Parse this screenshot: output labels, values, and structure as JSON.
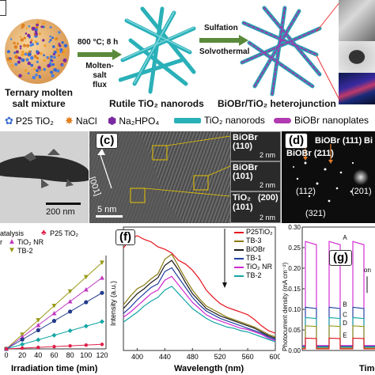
{
  "top": {
    "step1": {
      "temp": "800 °C; 8 h",
      "flux": "Molten-salt",
      "flux2": "flux"
    },
    "step2": {
      "a": "Sulfation",
      "b": "Solvothermal"
    },
    "ternary": [
      "Ternary molten",
      "salt  mixture"
    ],
    "rutile": "Rutile TiO₂ nanorods",
    "hetero": "BiOBr/TiO₂ heterojunction"
  },
  "legend": {
    "p25": "P25 TiO₂",
    "nacl": "NaCl",
    "na2hpo4": "Na₂HPO₄",
    "tio2": "TiO₂ nanorods",
    "biobr": "BiOBr nanoplates"
  },
  "panel_b": {
    "scale": "200 nm"
  },
  "panel_c": {
    "letter": "(c)",
    "scale": "5 nm",
    "dir": "[001]",
    "inset1": {
      "label1": "BiOBr",
      "label2": "(110)",
      "scale": "2 nm"
    },
    "inset2": {
      "label1": "BiOBr",
      "label2": "(101)",
      "scale": "2 nm"
    },
    "inset3": {
      "label1": "TiO₂",
      "label2": "(200)",
      "label3": "(101)",
      "scale": "2 nm"
    }
  },
  "panel_d": {
    "letter": "(d)",
    "spots": [
      "BiOBr (211)",
      "BiOBr (111)",
      "Bi",
      "(112)",
      "(201)",
      "(321)"
    ]
  },
  "panel_e": {
    "legend": [
      "atalysis",
      "P25 TiO₂",
      "r",
      "TiO₂ NR",
      "TB-2"
    ],
    "xlabel": "Irradiation time (min)",
    "xticks": [
      "0",
      "20",
      "40",
      "60",
      "80",
      "100",
      "120"
    ]
  },
  "panel_f": {
    "letter": "(f)",
    "xlabel": "Wavelength (nm)",
    "ylabel": "Intensity (a.u.)",
    "xticks": [
      "400",
      "440",
      "480",
      "520",
      "560",
      "600"
    ],
    "legend": [
      "P25TiO₂",
      "TB-3",
      "BiOBr",
      "TB-1",
      "TiO₂ NR",
      "TB-2"
    ]
  },
  "panel_g": {
    "letter": "(g)",
    "ylabel": "Photocurrent density (mA cm⁻²)",
    "yticks": [
      "0.00",
      "0.05",
      "0.10",
      "0.15",
      "0.20",
      "0.25",
      "0.30"
    ],
    "xlabel": "Time",
    "labels": [
      "A",
      "B",
      "C",
      "D",
      "E",
      "on"
    ]
  },
  "chart_data": [
    {
      "type": "scatter",
      "panel": "e",
      "xlabel": "Irradiation time (min)",
      "x": [
        0,
        20,
        40,
        60,
        80,
        100,
        120
      ],
      "xlim": [
        0,
        125
      ],
      "series": [
        {
          "name": "TB-2",
          "color": "#9a9a1a",
          "values": [
            0,
            0.57,
            1.14,
            1.71,
            2.28,
            2.85,
            3.42
          ]
        },
        {
          "name": "TiO₂ NR",
          "color": "#c13ac1",
          "values": [
            0,
            0.47,
            0.94,
            1.41,
            1.88,
            2.35,
            2.82
          ]
        },
        {
          "name": "",
          "color": "#223b8a",
          "values": [
            0,
            0.37,
            0.74,
            1.11,
            1.48,
            1.85,
            2.22
          ]
        },
        {
          "name": "",
          "color": "#17a6a6",
          "values": [
            0,
            0.18,
            0.36,
            0.54,
            0.72,
            0.9,
            1.08
          ]
        },
        {
          "name": "P25 TiO₂",
          "color": "#e0204a",
          "values": [
            0,
            0.03,
            0.06,
            0.09,
            0.12,
            0.15,
            0.18
          ]
        }
      ],
      "ylim": [
        0,
        3.7
      ]
    },
    {
      "type": "line",
      "panel": "f",
      "xlabel": "Wavelength (nm)",
      "ylabel": "Intensity (a.u.)",
      "x": [
        380,
        390,
        400,
        410,
        420,
        430,
        440,
        450,
        460,
        470,
        480,
        490,
        500,
        510,
        520,
        530,
        540,
        550,
        560,
        570,
        580,
        590,
        600
      ],
      "xlim": [
        380,
        600
      ],
      "ylim": [
        0,
        10
      ],
      "series": [
        {
          "name": "P25TiO₂",
          "color": "#e8141e",
          "values": [
            8.3,
            9.0,
            9.3,
            9.0,
            8.8,
            8.4,
            8.2,
            7.9,
            7.3,
            7.0,
            6.5,
            5.8,
            4.9,
            4.3,
            3.8,
            3.5,
            3.3,
            3.1,
            2.9,
            2.5,
            2.0,
            1.6,
            1.4
          ]
        },
        {
          "name": "TB-3",
          "color": "#8a7a10",
          "values": [
            3.7,
            4.4,
            5.0,
            5.3,
            5.8,
            6.2,
            7.4,
            7.8,
            6.8,
            5.8,
            4.9,
            4.2,
            3.6,
            3.3,
            3.0,
            2.7,
            2.5,
            2.3,
            2.1,
            1.9,
            1.6,
            1.3,
            1.1
          ]
        },
        {
          "name": "BiOBr",
          "color": "#1a1a1a",
          "values": [
            3.4,
            4.0,
            4.6,
            5.0,
            5.5,
            5.9,
            6.9,
            7.3,
            6.5,
            5.5,
            4.6,
            4.0,
            3.4,
            3.1,
            2.8,
            2.6,
            2.4,
            2.2,
            2.0,
            1.8,
            1.5,
            1.2,
            1.0
          ]
        },
        {
          "name": "TB-1",
          "color": "#1f3fa0",
          "values": [
            3.0,
            3.5,
            4.1,
            4.6,
            5.1,
            5.4,
            6.4,
            6.7,
            5.9,
            5.1,
            4.3,
            3.7,
            3.2,
            2.9,
            2.6,
            2.4,
            2.2,
            2.0,
            1.8,
            1.6,
            1.4,
            1.1,
            0.9
          ]
        },
        {
          "name": "TiO₂ NR",
          "color": "#d02ad0",
          "values": [
            2.7,
            3.1,
            3.6,
            4.1,
            4.6,
            4.9,
            5.7,
            6.0,
            5.3,
            4.6,
            3.9,
            3.4,
            2.9,
            2.6,
            2.4,
            2.2,
            2.0,
            1.8,
            1.7,
            1.5,
            1.3,
            1.0,
            0.8
          ]
        },
        {
          "name": "TB-2",
          "color": "#14a4a4",
          "values": [
            2.3,
            2.7,
            3.1,
            3.6,
            4.0,
            4.3,
            4.9,
            5.2,
            4.6,
            4.0,
            3.4,
            3.0,
            2.6,
            2.3,
            2.1,
            1.9,
            1.8,
            1.6,
            1.5,
            1.3,
            1.1,
            0.9,
            0.7
          ]
        }
      ]
    },
    {
      "type": "line",
      "panel": "g",
      "ylabel": "Photocurrent density (mA cm⁻²)",
      "ylim": [
        0,
        0.3
      ],
      "yticks": [
        0,
        0.05,
        0.1,
        0.15,
        0.2,
        0.25,
        0.3
      ],
      "series": [
        {
          "name": "A",
          "color": "#d01ed0",
          "on": 0.265,
          "off": 0.012
        },
        {
          "name": "B",
          "color": "#1f3fa0",
          "on": 0.105,
          "off": 0.01
        },
        {
          "name": "C",
          "color": "#14a4a4",
          "on": 0.08,
          "off": 0.008
        },
        {
          "name": "D",
          "color": "#9a9a1a",
          "on": 0.06,
          "off": 0.006
        },
        {
          "name": "E",
          "color": "#e8141e",
          "on": 0.03,
          "off": 0.004
        }
      ]
    }
  ]
}
